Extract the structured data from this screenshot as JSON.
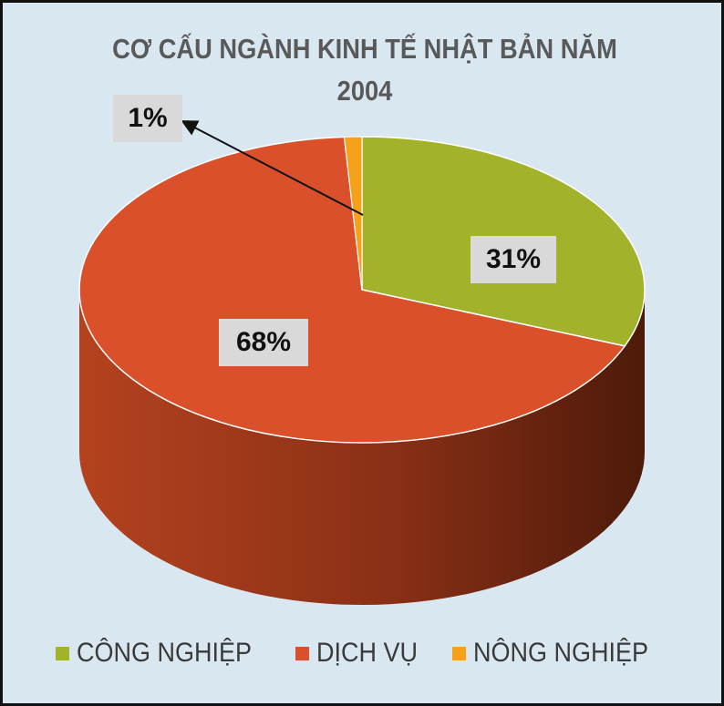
{
  "chart_data": {
    "type": "pie",
    "title_lines": [
      "CƠ CẤU NGÀNH KINH TẾ NHẬT BẢN NĂM",
      "2004"
    ],
    "legend_position": "bottom",
    "slices": [
      {
        "name": "CÔNG NGHIỆP",
        "value": 31,
        "label": "31%",
        "color": "#a2b22a"
      },
      {
        "name": "DỊCH VỤ",
        "value": 68,
        "label": "68%",
        "color": "#d9502a"
      },
      {
        "name": "NÔNG NGHIỆP",
        "value": 1,
        "label": "1%",
        "color": "#f5a21a"
      }
    ]
  }
}
